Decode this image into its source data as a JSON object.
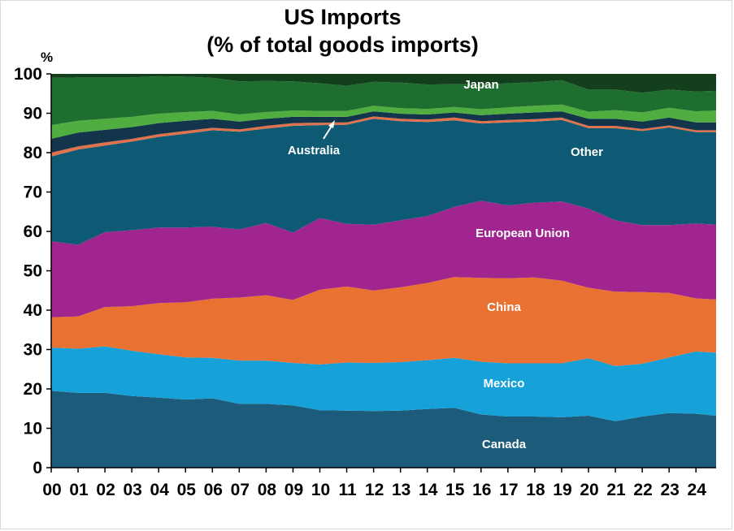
{
  "chart_data": {
    "type": "area",
    "stacked": true,
    "title_line1": "US Imports",
    "title_line2": "(% of total goods imports)",
    "ylabel": "%",
    "ylim": [
      0,
      100
    ],
    "yticks": [
      0,
      10,
      20,
      30,
      40,
      50,
      60,
      70,
      80,
      90,
      100
    ],
    "xlim": [
      2000,
      2024.75
    ],
    "x_tick_labels": [
      "00",
      "01",
      "02",
      "03",
      "04",
      "05",
      "06",
      "07",
      "08",
      "09",
      "10",
      "11",
      "12",
      "13",
      "14",
      "15",
      "16",
      "17",
      "18",
      "19",
      "20",
      "21",
      "22",
      "23",
      "24"
    ],
    "x": [
      2000,
      2001,
      2002,
      2003,
      2004,
      2005,
      2006,
      2007,
      2008,
      2009,
      2010,
      2011,
      2012,
      2013,
      2014,
      2015,
      2016,
      2017,
      2018,
      2019,
      2020,
      2021,
      2022,
      2023,
      2024,
      2024.75
    ],
    "series": [
      {
        "name": "Canada",
        "color": "#1d5b7a",
        "values": [
          19.5,
          19.0,
          19.0,
          18.2,
          17.8,
          17.3,
          17.6,
          16.2,
          16.2,
          15.8,
          14.6,
          14.5,
          14.4,
          14.5,
          14.9,
          15.2,
          13.5,
          13.0,
          13.0,
          12.8,
          13.2,
          11.8,
          13.0,
          13.9,
          13.7,
          13.2
        ]
      },
      {
        "name": "Mexico",
        "color": "#16a1d9",
        "values": [
          11.0,
          11.2,
          11.8,
          11.5,
          11.0,
          10.7,
          10.3,
          11.0,
          11.0,
          10.8,
          11.6,
          12.2,
          12.2,
          12.3,
          12.4,
          12.7,
          13.4,
          13.5,
          13.5,
          13.7,
          14.6,
          14.0,
          13.4,
          14.1,
          15.8,
          16.0
        ]
      },
      {
        "name": "China",
        "color": "#e97132",
        "values": [
          7.7,
          8.2,
          10.0,
          11.3,
          13.0,
          14.0,
          15.0,
          16.0,
          16.6,
          16.0,
          19.0,
          19.3,
          18.4,
          19.0,
          19.6,
          20.5,
          21.3,
          21.6,
          21.8,
          21.0,
          17.9,
          18.9,
          18.2,
          16.4,
          13.5,
          13.5
        ]
      },
      {
        "name": "European Union",
        "color": "#a0258f",
        "values": [
          19.3,
          18.2,
          19.0,
          19.3,
          19.2,
          19.0,
          18.3,
          17.3,
          18.3,
          17.1,
          18.2,
          15.9,
          16.7,
          17.0,
          17.0,
          17.8,
          19.6,
          18.5,
          19.0,
          20.1,
          20.1,
          18.1,
          17.0,
          17.2,
          19.0,
          19.0
        ]
      },
      {
        "name": "Other",
        "color": "#0e5a75",
        "values": [
          21.5,
          24.2,
          22.0,
          22.5,
          23.0,
          23.8,
          24.5,
          24.8,
          24.0,
          27.1,
          23.6,
          25.2,
          26.9,
          25.2,
          23.9,
          22.0,
          19.6,
          21.1,
          20.6,
          20.7,
          20.4,
          23.4,
          23.9,
          24.8,
          23.2,
          23.5
        ]
      },
      {
        "name": "Australia",
        "color": "#e0714a",
        "values": [
          1.0,
          0.8,
          0.8,
          0.7,
          0.7,
          0.7,
          0.6,
          0.6,
          0.7,
          0.7,
          0.6,
          0.6,
          0.6,
          0.6,
          0.6,
          0.7,
          0.6,
          0.6,
          0.6,
          0.6,
          0.6,
          0.6,
          0.5,
          0.5,
          0.5,
          0.5
        ]
      },
      {
        "name": "Dark navy band",
        "color": "#13354b",
        "values": [
          3.5,
          3.5,
          3.2,
          3.0,
          2.8,
          2.6,
          2.3,
          2.0,
          1.8,
          1.6,
          1.5,
          1.4,
          1.3,
          1.3,
          1.3,
          1.3,
          1.5,
          1.6,
          1.7,
          1.6,
          1.8,
          1.8,
          1.9,
          2.0,
          2.0,
          2.0
        ]
      },
      {
        "name": "Light green band",
        "color": "#4fae3f",
        "values": [
          3.5,
          3.0,
          2.8,
          2.6,
          2.4,
          2.2,
          2.0,
          1.8,
          1.7,
          1.6,
          1.5,
          1.5,
          1.4,
          1.4,
          1.4,
          1.4,
          1.5,
          1.6,
          1.7,
          1.7,
          1.8,
          2.2,
          2.3,
          2.5,
          2.8,
          3.0
        ]
      },
      {
        "name": "Japan",
        "color": "#1e6f2f",
        "values": [
          12.0,
          11.0,
          10.5,
          10.0,
          9.5,
          9.0,
          8.4,
          8.4,
          7.9,
          7.4,
          7.0,
          6.4,
          6.1,
          6.5,
          6.2,
          5.8,
          6.3,
          6.1,
          6.0,
          6.2,
          5.6,
          5.2,
          5.0,
          4.6,
          5.0,
          5.0
        ]
      },
      {
        "name": "Top dark band",
        "color": "#133f1c",
        "values": [
          0,
          0,
          0,
          0,
          0,
          0,
          0,
          0,
          0,
          0.8,
          0.6,
          0.5,
          0.5,
          0.6,
          0.6,
          0.6,
          0.7,
          0.7,
          0.7,
          0.8,
          1.0,
          2.8,
          3.5,
          3.5,
          3.5,
          3.5
        ]
      }
    ],
    "annotations": {
      "japan": "Japan",
      "australia": "Australia",
      "other": "Other",
      "eu": "European Union",
      "china": "China",
      "mexico": "Mexico",
      "canada": "Canada"
    }
  }
}
